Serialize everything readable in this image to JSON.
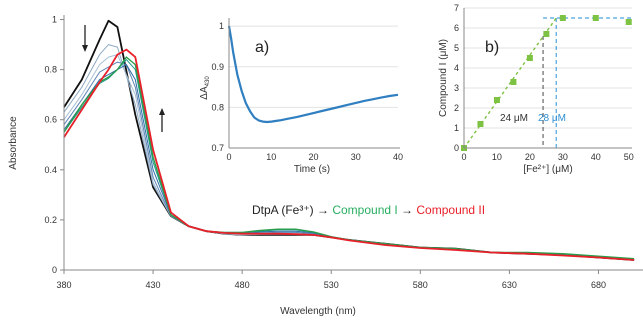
{
  "chart_data": [
    {
      "type": "line",
      "xlabel": "Wavelength (nm)",
      "ylabel": "Absorbance",
      "xlim": [
        380,
        705
      ],
      "ylim": [
        0,
        1.05
      ],
      "xticks": [
        "380",
        "430",
        "480",
        "530",
        "580",
        "630",
        "680"
      ],
      "yticks": [
        "0",
        "0.2",
        "0.4",
        "0.6",
        "0.8",
        "1"
      ],
      "annotation": {
        "prefix": "DtpA (Fe³⁺) → ",
        "compound1": "Compound  I",
        "arrow": " → ",
        "compound2": "Compound  II",
        "color1": "#27ae60",
        "color2": "#e8202a"
      },
      "series": [
        {
          "color": "#111111",
          "width": 1.8,
          "points": [
            [
              380,
              0.65
            ],
            [
              390,
              0.76
            ],
            [
              400,
              0.92
            ],
            [
              405,
              0.995
            ],
            [
              410,
              0.97
            ],
            [
              420,
              0.62
            ],
            [
              430,
              0.33
            ],
            [
              440,
              0.215
            ],
            [
              450,
              0.175
            ],
            [
              460,
              0.155
            ],
            [
              470,
              0.145
            ],
            [
              480,
              0.14
            ],
            [
              490,
              0.14
            ],
            [
              500,
              0.14
            ],
            [
              510,
              0.14
            ],
            [
              520,
              0.14
            ],
            [
              530,
              0.13
            ],
            [
              540,
              0.12
            ],
            [
              560,
              0.105
            ],
            [
              580,
              0.09
            ],
            [
              600,
              0.085
            ],
            [
              620,
              0.07
            ],
            [
              640,
              0.065
            ],
            [
              660,
              0.06
            ],
            [
              680,
              0.05
            ],
            [
              700,
              0.04
            ]
          ]
        },
        {
          "color": "#8da9c4",
          "width": 1,
          "points": [
            [
              380,
              0.63
            ],
            [
              390,
              0.73
            ],
            [
              400,
              0.86
            ],
            [
              405,
              0.9
            ],
            [
              410,
              0.89
            ],
            [
              420,
              0.66
            ],
            [
              430,
              0.34
            ],
            [
              440,
              0.215
            ],
            [
              450,
              0.175
            ],
            [
              460,
              0.155
            ],
            [
              470,
              0.145
            ],
            [
              480,
              0.14
            ],
            [
              490,
              0.142
            ],
            [
              500,
              0.143
            ],
            [
              510,
              0.143
            ],
            [
              520,
              0.14
            ],
            [
              530,
              0.13
            ],
            [
              540,
              0.12
            ],
            [
              560,
              0.105
            ],
            [
              580,
              0.09
            ],
            [
              600,
              0.085
            ],
            [
              620,
              0.07
            ],
            [
              640,
              0.065
            ],
            [
              660,
              0.06
            ],
            [
              680,
              0.05
            ],
            [
              700,
              0.04
            ]
          ]
        },
        {
          "color": "#a9bfd4",
          "width": 1,
          "points": [
            [
              380,
              0.6
            ],
            [
              390,
              0.7
            ],
            [
              400,
              0.82
            ],
            [
              405,
              0.85
            ],
            [
              410,
              0.86
            ],
            [
              420,
              0.7
            ],
            [
              430,
              0.35
            ],
            [
              440,
              0.215
            ],
            [
              450,
              0.175
            ],
            [
              460,
              0.155
            ],
            [
              470,
              0.145
            ],
            [
              480,
              0.14
            ],
            [
              490,
              0.145
            ],
            [
              500,
              0.146
            ],
            [
              510,
              0.146
            ],
            [
              520,
              0.142
            ],
            [
              530,
              0.13
            ],
            [
              540,
              0.12
            ],
            [
              560,
              0.105
            ],
            [
              580,
              0.09
            ],
            [
              600,
              0.085
            ],
            [
              620,
              0.07
            ],
            [
              640,
              0.065
            ],
            [
              660,
              0.06
            ],
            [
              680,
              0.05
            ],
            [
              700,
              0.04
            ]
          ]
        },
        {
          "color": "#5f84b4",
          "width": 1,
          "points": [
            [
              380,
              0.58
            ],
            [
              390,
              0.68
            ],
            [
              400,
              0.79
            ],
            [
              405,
              0.81
            ],
            [
              410,
              0.83
            ],
            [
              415,
              0.82
            ],
            [
              420,
              0.73
            ],
            [
              430,
              0.37
            ],
            [
              440,
              0.215
            ],
            [
              450,
              0.175
            ],
            [
              460,
              0.155
            ],
            [
              470,
              0.147
            ],
            [
              480,
              0.145
            ],
            [
              490,
              0.148
            ],
            [
              500,
              0.15
            ],
            [
              510,
              0.15
            ],
            [
              520,
              0.145
            ],
            [
              530,
              0.13
            ],
            [
              540,
              0.12
            ],
            [
              560,
              0.105
            ],
            [
              580,
              0.09
            ],
            [
              600,
              0.085
            ],
            [
              620,
              0.07
            ],
            [
              640,
              0.065
            ],
            [
              660,
              0.06
            ],
            [
              680,
              0.05
            ],
            [
              700,
              0.04
            ]
          ]
        },
        {
          "color": "#2f6da8",
          "width": 1,
          "points": [
            [
              380,
              0.56
            ],
            [
              390,
              0.66
            ],
            [
              400,
              0.76
            ],
            [
              405,
              0.78
            ],
            [
              410,
              0.8
            ],
            [
              415,
              0.82
            ],
            [
              420,
              0.76
            ],
            [
              430,
              0.4
            ],
            [
              440,
              0.22
            ],
            [
              450,
              0.175
            ],
            [
              460,
              0.155
            ],
            [
              470,
              0.148
            ],
            [
              480,
              0.148
            ],
            [
              490,
              0.152
            ],
            [
              500,
              0.155
            ],
            [
              510,
              0.155
            ],
            [
              520,
              0.148
            ],
            [
              530,
              0.132
            ],
            [
              540,
              0.12
            ],
            [
              560,
              0.105
            ],
            [
              580,
              0.09
            ],
            [
              600,
              0.085
            ],
            [
              620,
              0.07
            ],
            [
              640,
              0.065
            ],
            [
              660,
              0.06
            ],
            [
              680,
              0.05
            ],
            [
              700,
              0.04
            ]
          ]
        },
        {
          "color": "#1e9a8c",
          "width": 1,
          "points": [
            [
              380,
              0.55
            ],
            [
              390,
              0.65
            ],
            [
              400,
              0.745
            ],
            [
              405,
              0.765
            ],
            [
              410,
              0.8
            ],
            [
              415,
              0.84
            ],
            [
              420,
              0.8
            ],
            [
              430,
              0.43
            ],
            [
              440,
              0.22
            ],
            [
              450,
              0.175
            ],
            [
              460,
              0.155
            ],
            [
              470,
              0.15
            ],
            [
              480,
              0.15
            ],
            [
              490,
              0.155
            ],
            [
              500,
              0.16
            ],
            [
              510,
              0.16
            ],
            [
              520,
              0.15
            ],
            [
              530,
              0.133
            ],
            [
              540,
              0.12
            ],
            [
              560,
              0.105
            ],
            [
              580,
              0.09
            ],
            [
              600,
              0.085
            ],
            [
              620,
              0.07
            ],
            [
              640,
              0.065
            ],
            [
              660,
              0.06
            ],
            [
              680,
              0.05
            ],
            [
              700,
              0.04
            ]
          ]
        },
        {
          "color": "#2a9d4a",
          "width": 1.4,
          "points": [
            [
              380,
              0.55
            ],
            [
              390,
              0.66
            ],
            [
              400,
              0.75
            ],
            [
              405,
              0.77
            ],
            [
              410,
              0.8
            ],
            [
              415,
              0.85
            ],
            [
              420,
              0.82
            ],
            [
              430,
              0.45
            ],
            [
              440,
              0.22
            ],
            [
              450,
              0.175
            ],
            [
              460,
              0.155
            ],
            [
              470,
              0.15
            ],
            [
              480,
              0.15
            ],
            [
              490,
              0.158
            ],
            [
              500,
              0.163
            ],
            [
              510,
              0.163
            ],
            [
              520,
              0.152
            ],
            [
              530,
              0.133
            ],
            [
              540,
              0.12
            ],
            [
              560,
              0.105
            ],
            [
              580,
              0.09
            ],
            [
              600,
              0.085
            ],
            [
              620,
              0.07
            ],
            [
              640,
              0.07
            ],
            [
              660,
              0.065
            ],
            [
              680,
              0.055
            ],
            [
              700,
              0.045
            ]
          ]
        },
        {
          "color": "#e8202a",
          "width": 1.8,
          "points": [
            [
              380,
              0.53
            ],
            [
              390,
              0.64
            ],
            [
              400,
              0.75
            ],
            [
              405,
              0.8
            ],
            [
              410,
              0.86
            ],
            [
              415,
              0.88
            ],
            [
              420,
              0.85
            ],
            [
              430,
              0.48
            ],
            [
              440,
              0.23
            ],
            [
              450,
              0.175
            ],
            [
              460,
              0.155
            ],
            [
              470,
              0.148
            ],
            [
              480,
              0.145
            ],
            [
              490,
              0.145
            ],
            [
              500,
              0.145
            ],
            [
              510,
              0.143
            ],
            [
              520,
              0.14
            ],
            [
              530,
              0.13
            ],
            [
              540,
              0.118
            ],
            [
              560,
              0.1
            ],
            [
              580,
              0.088
            ],
            [
              600,
              0.08
            ],
            [
              620,
              0.07
            ],
            [
              640,
              0.065
            ],
            [
              660,
              0.058
            ],
            [
              680,
              0.05
            ],
            [
              700,
              0.04
            ]
          ]
        }
      ]
    },
    {
      "type": "line",
      "panel_label": "a)",
      "xlabel": "Time (s)",
      "ylabel": "ΔA",
      "ylabel_sub": "430",
      "xlim": [
        0,
        40
      ],
      "ylim": [
        0.7,
        1.02
      ],
      "xticks": [
        "0",
        "10",
        "20",
        "30",
        "40"
      ],
      "yticks": [
        "0.7",
        "0.8",
        "0.9",
        "1"
      ],
      "series": [
        {
          "color": "#2f7fc1",
          "points": [
            [
              0,
              1
            ],
            [
              0.5,
              0.97
            ],
            [
              1,
              0.935
            ],
            [
              2,
              0.88
            ],
            [
              3,
              0.84
            ],
            [
              4,
              0.81
            ],
            [
              5,
              0.79
            ],
            [
              6,
              0.775
            ],
            [
              7,
              0.768
            ],
            [
              8,
              0.765
            ],
            [
              9,
              0.764
            ],
            [
              10,
              0.765
            ],
            [
              12,
              0.768
            ],
            [
              14,
              0.772
            ],
            [
              16,
              0.776
            ],
            [
              18,
              0.781
            ],
            [
              20,
              0.786
            ],
            [
              22,
              0.791
            ],
            [
              24,
              0.796
            ],
            [
              26,
              0.801
            ],
            [
              28,
              0.806
            ],
            [
              30,
              0.811
            ],
            [
              32,
              0.816
            ],
            [
              34,
              0.82
            ],
            [
              36,
              0.824
            ],
            [
              38,
              0.828
            ],
            [
              40,
              0.831
            ]
          ]
        }
      ]
    },
    {
      "type": "scatter",
      "panel_label": "b)",
      "xlabel": "[Fe²⁺] (μM)",
      "ylabel": "Compound I (μM)",
      "xlim": [
        0,
        51
      ],
      "ylim": [
        0,
        7
      ],
      "xticks": [
        "0",
        "10",
        "20",
        "30",
        "40",
        "50"
      ],
      "yticks": [
        "0",
        "1",
        "2",
        "3",
        "4",
        "5",
        "6",
        "7"
      ],
      "points": [
        [
          0,
          0
        ],
        [
          5,
          1.2
        ],
        [
          10,
          2.4
        ],
        [
          15,
          3.3
        ],
        [
          20,
          4.5
        ],
        [
          25,
          5.7
        ],
        [
          30,
          6.5
        ],
        [
          40,
          6.5
        ],
        [
          50,
          6.3
        ]
      ],
      "marker_color": "#7dc242",
      "fit_color": "#7dc242",
      "guide_color_1": "#666666",
      "guide_color_2": "#4aa3df",
      "guide1_x": 24,
      "guide2_x": 28,
      "label1": "24 μM",
      "label2": "28 μM"
    }
  ]
}
